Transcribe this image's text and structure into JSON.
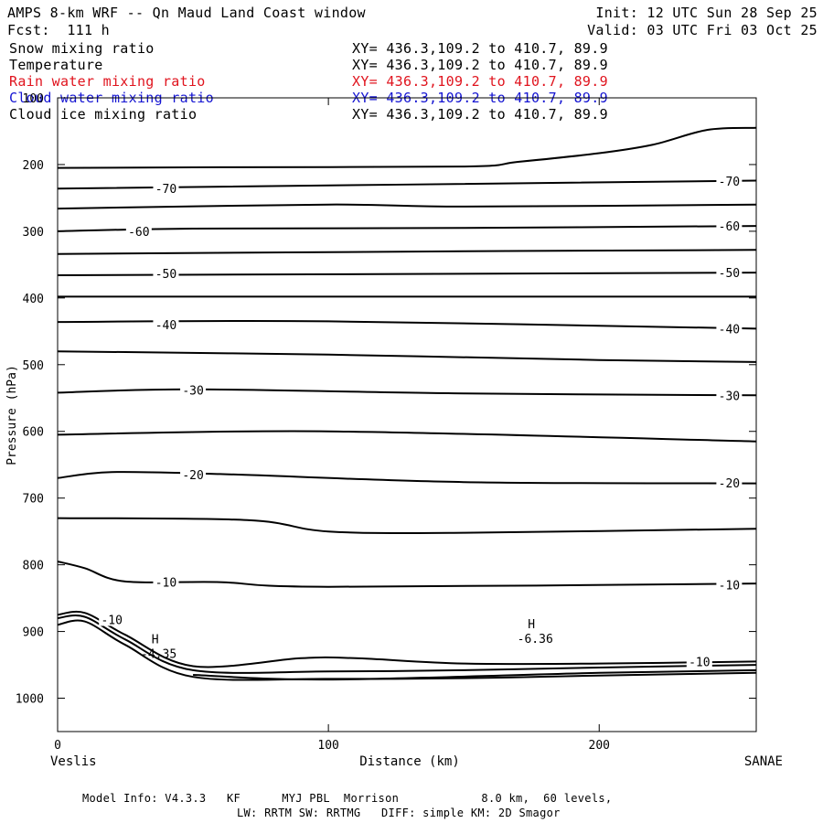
{
  "header": {
    "title": "AMPS 8-km WRF -- Qn Maud Land Coast window",
    "forecast": "Fcst:  111 h",
    "init": "Init: 12 UTC Sun 28 Sep 25",
    "valid": "Valid: 03 UTC Fri 03 Oct 25"
  },
  "fields": [
    {
      "name": "Snow mixing ratio",
      "xy": "XY= 436.3,109.2 to 410.7, 89.9",
      "color": "#000000"
    },
    {
      "name": "Temperature",
      "xy": "XY= 436.3,109.2 to 410.7, 89.9",
      "color": "#000000"
    },
    {
      "name": "Rain water mixing ratio",
      "xy": "XY= 436.3,109.2 to 410.7, 89.9",
      "color": "#e0141e"
    },
    {
      "name": "Cloud water mixing ratio",
      "xy": "XY= 436.3,109.2 to 410.7, 89.9",
      "color": "#1414d2"
    },
    {
      "name": "Cloud ice mixing ratio",
      "xy": "XY= 436.3,109.2 to 410.7, 89.9",
      "color": "#000000"
    }
  ],
  "footer": {
    "line1": "Model Info: V4.3.3   KF      MYJ PBL  Morrison            8.0 km,  60 levels,",
    "line2": "LW: RRTM SW: RRTMG   DIFF: simple KM: 2D Smagor"
  },
  "chart_data": {
    "type": "line",
    "title": "",
    "xlabel": "Distance (km)",
    "ylabel": "Pressure (hPa)",
    "xlim": [
      0,
      258
    ],
    "ylim": [
      1050,
      100
    ],
    "x_ticks": [
      "0",
      "100",
      "200"
    ],
    "y_ticks": [
      "100",
      "200",
      "300",
      "400",
      "500",
      "600",
      "700",
      "800",
      "900",
      "1000"
    ],
    "x_end_labels": {
      "left": "Veslis",
      "right": "SANAE"
    },
    "isotherm_labels": [
      {
        "text": "-70",
        "x": 40,
        "p": 236
      },
      {
        "text": "-70",
        "x": 248,
        "p": 225
      },
      {
        "text": "-60",
        "x": 30,
        "p": 300
      },
      {
        "text": "-60",
        "x": 248,
        "p": 292
      },
      {
        "text": "-50",
        "x": 40,
        "p": 363
      },
      {
        "text": "-50",
        "x": 248,
        "p": 362
      },
      {
        "text": "-40",
        "x": 40,
        "p": 440
      },
      {
        "text": "-40",
        "x": 248,
        "p": 446
      },
      {
        "text": "-30",
        "x": 50,
        "p": 538
      },
      {
        "text": "-30",
        "x": 248,
        "p": 546
      },
      {
        "text": "-20",
        "x": 50,
        "p": 665
      },
      {
        "text": "-20",
        "x": 248,
        "p": 677
      },
      {
        "text": "-10",
        "x": 40,
        "p": 826
      },
      {
        "text": "-10",
        "x": 248,
        "p": 830
      },
      {
        "text": "-10",
        "x": 20,
        "p": 882
      },
      {
        "text": "-10",
        "x": 237,
        "p": 945
      }
    ],
    "extrema": [
      {
        "letter": "H",
        "value": "-4.35",
        "x": 36,
        "p": 918
      },
      {
        "letter": "H",
        "value": "-6.36",
        "x": 175,
        "p": 895
      }
    ],
    "series": [
      {
        "x": [
          0,
          60,
          150,
          170,
          200,
          220,
          240,
          258
        ],
        "p": [
          205,
          204,
          203,
          196,
          183,
          170,
          148,
          145
        ]
      },
      {
        "x": [
          0,
          258
        ],
        "p": [
          236,
          224
        ]
      },
      {
        "x": [
          0,
          100,
          150,
          258
        ],
        "p": [
          266,
          260,
          263,
          260
        ]
      },
      {
        "x": [
          0,
          50,
          150,
          258
        ],
        "p": [
          300,
          296,
          295,
          292
        ]
      },
      {
        "x": [
          0,
          150,
          258
        ],
        "p": [
          334,
          330,
          328
        ]
      },
      {
        "x": [
          0,
          258
        ],
        "p": [
          366,
          362
        ]
      },
      {
        "x": [
          0,
          258
        ],
        "p": [
          398,
          398
        ]
      },
      {
        "x": [
          0,
          100,
          258
        ],
        "p": [
          436,
          435,
          446
        ]
      },
      {
        "x": [
          0,
          100,
          200,
          258
        ],
        "p": [
          480,
          485,
          493,
          496
        ]
      },
      {
        "x": [
          0,
          50,
          150,
          258
        ],
        "p": [
          542,
          537,
          543,
          546
        ]
      },
      {
        "x": [
          0,
          100,
          258
        ],
        "p": [
          605,
          600,
          615
        ]
      },
      {
        "x": [
          0,
          20,
          60,
          150,
          258
        ],
        "p": [
          670,
          661,
          664,
          676,
          678
        ]
      },
      {
        "x": [
          0,
          70,
          100,
          150,
          258
        ],
        "p": [
          730,
          733,
          750,
          752,
          746
        ]
      },
      {
        "x": [
          0,
          10,
          25,
          60,
          100,
          258
        ],
        "p": [
          795,
          805,
          825,
          826,
          833,
          828
        ]
      },
      {
        "x": [
          0,
          10,
          25,
          50,
          100,
          150,
          200,
          258
        ],
        "p": [
          890,
          885,
          920,
          968,
          971,
          970,
          966,
          962
        ]
      },
      {
        "x": [
          0,
          10,
          25,
          50,
          100,
          150,
          200,
          258
        ],
        "p": [
          880,
          878,
          912,
          958,
          960,
          958,
          954,
          950
        ]
      },
      {
        "x": [
          0,
          10,
          25,
          50,
          90,
          110,
          150,
          200,
          258
        ],
        "p": [
          875,
          872,
          905,
          952,
          940,
          940,
          948,
          948,
          945
        ]
      },
      {
        "x": [
          50,
          100,
          200,
          258
        ],
        "p": [
          965,
          972,
          962,
          958
        ]
      }
    ]
  }
}
